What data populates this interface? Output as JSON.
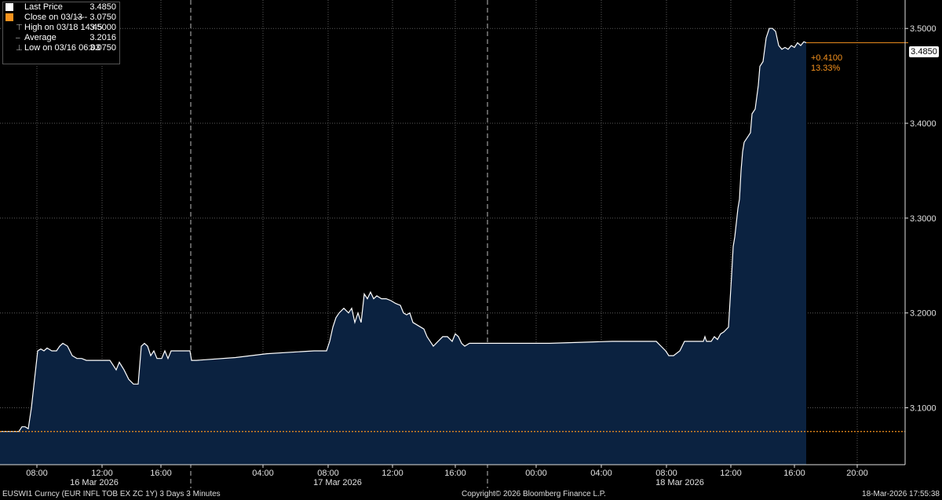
{
  "legend": {
    "items": [
      {
        "label": "Last Price",
        "value": "3.4850",
        "icon": "white-square-icon"
      },
      {
        "label": "Close on 03/13",
        "value": "---- 3.0750",
        "icon": "orange-square-icon"
      },
      {
        "label": "High on 03/18 14:45",
        "value": "3.5000",
        "icon": "high-marker-icon"
      },
      {
        "label": "Average",
        "value": "3.2016",
        "icon": "average-line-icon"
      },
      {
        "label": "Low on 03/16 06:03",
        "value": "3.0750",
        "icon": "low-marker-icon"
      }
    ]
  },
  "last_price_badge": "3.4850",
  "change": {
    "abs": "+0.4100",
    "pct": "13.33%"
  },
  "footer": {
    "ticker": "EUSWI1 Curncy (EUR INFL TOB EX ZC 1Y) 3 Days 3 Minutes",
    "copyright": "Copyright© 2026 Bloomberg Finance L.P.",
    "timestamp": "18-Mar-2026 17:55:38"
  },
  "colors": {
    "line": "#ffffff",
    "fill": "#0b2240",
    "close_line": "#f7931e",
    "grid": "#5a5a5a",
    "axis_text": "#e0e0e0"
  },
  "chart_data": {
    "type": "area",
    "ylim": [
      3.04,
      3.53
    ],
    "y_ticks": [
      "3.1000",
      "3.2000",
      "3.3000",
      "3.4000",
      "3.5000"
    ],
    "y_tick_values": [
      3.1,
      3.2,
      3.3,
      3.4,
      3.5
    ],
    "x_tick_labels": [
      "08:00",
      "12:00",
      "16:00",
      "04:00",
      "08:00",
      "12:00",
      "16:00",
      "00:00",
      "04:00",
      "08:00",
      "12:00",
      "16:00",
      "20:00"
    ],
    "day_labels": [
      "16 Mar 2026",
      "17 Mar 2026",
      "18 Mar 2026"
    ],
    "close_value": 3.075,
    "last_value": 3.485,
    "series": [
      {
        "values": [
          [
            0,
            3.075
          ],
          [
            18,
            3.075
          ],
          [
            24,
            3.075
          ],
          [
            28,
            3.08
          ],
          [
            32,
            3.08
          ],
          [
            36,
            3.078
          ],
          [
            40,
            3.1
          ],
          [
            44,
            3.13
          ],
          [
            48,
            3.16
          ],
          [
            52,
            3.162
          ],
          [
            56,
            3.16
          ],
          [
            60,
            3.163
          ],
          [
            66,
            3.16
          ],
          [
            72,
            3.16
          ],
          [
            76,
            3.165
          ],
          [
            80,
            3.168
          ],
          [
            86,
            3.165
          ],
          [
            92,
            3.155
          ],
          [
            98,
            3.152
          ],
          [
            104,
            3.152
          ],
          [
            110,
            3.15
          ],
          [
            118,
            3.15
          ],
          [
            126,
            3.15
          ],
          [
            134,
            3.15
          ],
          [
            140,
            3.15
          ],
          [
            144,
            3.145
          ],
          [
            148,
            3.14
          ],
          [
            152,
            3.148
          ],
          [
            158,
            3.14
          ],
          [
            164,
            3.13
          ],
          [
            170,
            3.125
          ],
          [
            176,
            3.125
          ],
          [
            180,
            3.165
          ],
          [
            184,
            3.168
          ],
          [
            188,
            3.165
          ],
          [
            192,
            3.155
          ],
          [
            196,
            3.16
          ],
          [
            200,
            3.152
          ],
          [
            206,
            3.152
          ],
          [
            210,
            3.16
          ],
          [
            214,
            3.152
          ],
          [
            218,
            3.16
          ],
          [
            222,
            3.16
          ],
          [
            228,
            3.16
          ],
          [
            236,
            3.16
          ],
          [
            242,
            3.16
          ],
          [
            244,
            3.15
          ],
          [
            250,
            3.15
          ],
          [
            300,
            3.153
          ],
          [
            340,
            3.157
          ],
          [
            380,
            3.159
          ],
          [
            400,
            3.16
          ],
          [
            416,
            3.16
          ],
          [
            420,
            3.17
          ],
          [
            424,
            3.185
          ],
          [
            428,
            3.195
          ],
          [
            432,
            3.2
          ],
          [
            438,
            3.205
          ],
          [
            444,
            3.2
          ],
          [
            448,
            3.205
          ],
          [
            452,
            3.19
          ],
          [
            456,
            3.2
          ],
          [
            460,
            3.19
          ],
          [
            462,
            3.205
          ],
          [
            464,
            3.22
          ],
          [
            468,
            3.215
          ],
          [
            472,
            3.222
          ],
          [
            476,
            3.215
          ],
          [
            480,
            3.218
          ],
          [
            486,
            3.215
          ],
          [
            492,
            3.215
          ],
          [
            498,
            3.213
          ],
          [
            504,
            3.21
          ],
          [
            510,
            3.208
          ],
          [
            514,
            3.2
          ],
          [
            518,
            3.198
          ],
          [
            522,
            3.2
          ],
          [
            526,
            3.19
          ],
          [
            530,
            3.188
          ],
          [
            536,
            3.185
          ],
          [
            540,
            3.183
          ],
          [
            544,
            3.175
          ],
          [
            548,
            3.17
          ],
          [
            552,
            3.165
          ],
          [
            558,
            3.17
          ],
          [
            564,
            3.175
          ],
          [
            570,
            3.175
          ],
          [
            576,
            3.17
          ],
          [
            580,
            3.178
          ],
          [
            584,
            3.175
          ],
          [
            588,
            3.168
          ],
          [
            592,
            3.165
          ],
          [
            598,
            3.168
          ],
          [
            604,
            3.168
          ],
          [
            610,
            3.168
          ],
          [
            620,
            3.168
          ],
          [
            660,
            3.168
          ],
          [
            700,
            3.168
          ],
          [
            740,
            3.169
          ],
          [
            780,
            3.17
          ],
          [
            820,
            3.17
          ],
          [
            836,
            3.17
          ],
          [
            842,
            3.165
          ],
          [
            848,
            3.16
          ],
          [
            852,
            3.155
          ],
          [
            858,
            3.155
          ],
          [
            866,
            3.16
          ],
          [
            872,
            3.17
          ],
          [
            882,
            3.17
          ],
          [
            892,
            3.17
          ],
          [
            896,
            3.17
          ],
          [
            898,
            3.175
          ],
          [
            900,
            3.17
          ],
          [
            906,
            3.17
          ],
          [
            910,
            3.175
          ],
          [
            914,
            3.172
          ],
          [
            918,
            3.178
          ],
          [
            922,
            3.18
          ],
          [
            928,
            3.185
          ],
          [
            932,
            3.24
          ],
          [
            934,
            3.27
          ],
          [
            936,
            3.28
          ],
          [
            940,
            3.31
          ],
          [
            942,
            3.32
          ],
          [
            944,
            3.35
          ],
          [
            946,
            3.37
          ],
          [
            948,
            3.38
          ],
          [
            952,
            3.385
          ],
          [
            956,
            3.39
          ],
          [
            958,
            3.41
          ],
          [
            962,
            3.415
          ],
          [
            966,
            3.44
          ],
          [
            968,
            3.46
          ],
          [
            972,
            3.465
          ],
          [
            976,
            3.49
          ],
          [
            980,
            3.5
          ],
          [
            984,
            3.5
          ],
          [
            988,
            3.497
          ],
          [
            992,
            3.482
          ],
          [
            996,
            3.478
          ],
          [
            1000,
            3.48
          ],
          [
            1004,
            3.478
          ],
          [
            1008,
            3.482
          ],
          [
            1012,
            3.48
          ],
          [
            1016,
            3.485
          ],
          [
            1020,
            3.482
          ],
          [
            1024,
            3.486
          ],
          [
            1027,
            3.485
          ]
        ]
      }
    ]
  }
}
